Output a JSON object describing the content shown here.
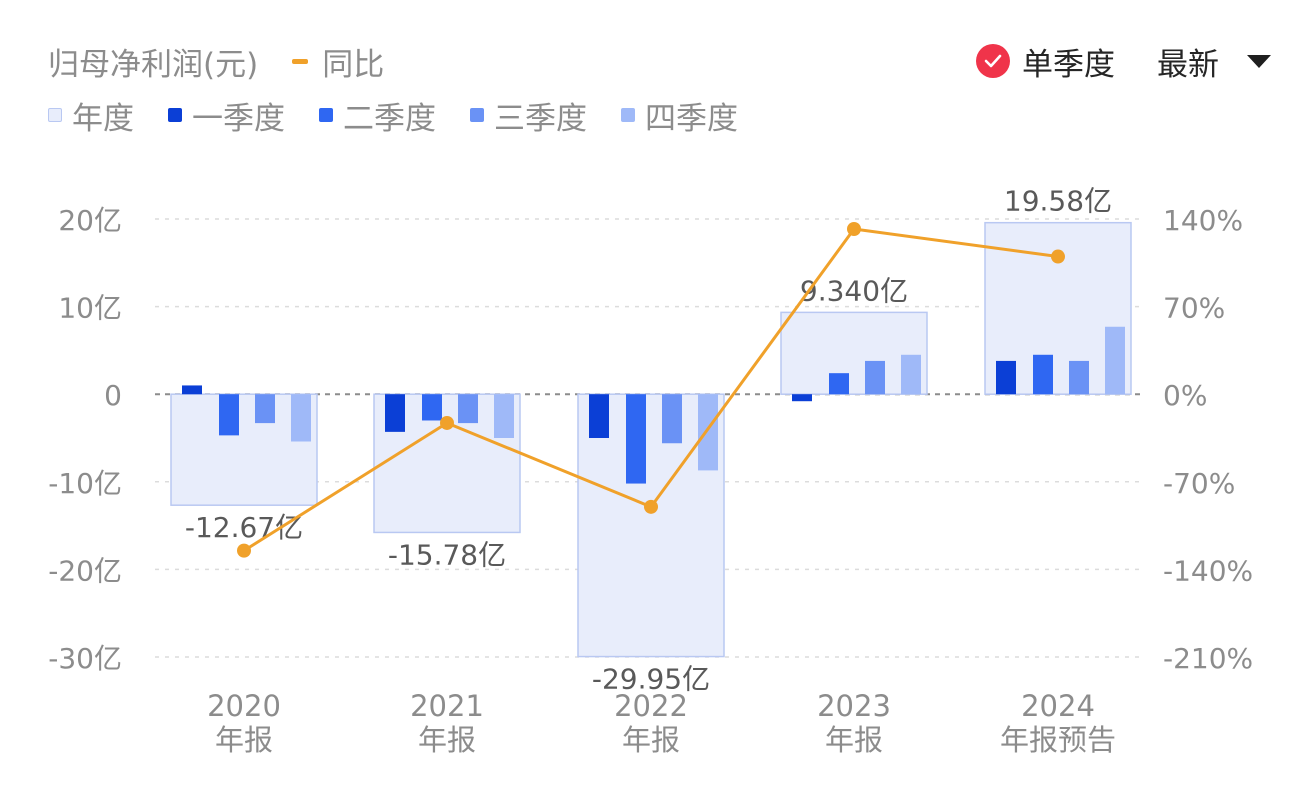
{
  "header": {
    "title": "归母净利润(元)",
    "yoy_label": "同比",
    "single_quarter_label": "单季度",
    "latest_label": "最新"
  },
  "legend": [
    {
      "label": "年度",
      "color": "#e8edfb",
      "border": "#b9c8f2"
    },
    {
      "label": "一季度",
      "color": "#0b3fd6"
    },
    {
      "label": "二季度",
      "color": "#2f67f2"
    },
    {
      "label": "三季度",
      "color": "#6a92f5"
    },
    {
      "label": "四季度",
      "color": "#9fb9f8"
    }
  ],
  "colors": {
    "yoy_line": "#f0a12a",
    "check_badge": "#f0344a",
    "axis_text": "#8c8c8c",
    "label_text": "#595959",
    "grid": "#dcdcdc",
    "zero_line": "#8c8c8c"
  },
  "chart_data": {
    "type": "bar",
    "categories": [
      {
        "year": "2020",
        "kind": "年报"
      },
      {
        "year": "2021",
        "kind": "年报"
      },
      {
        "year": "2022",
        "kind": "年报"
      },
      {
        "year": "2023",
        "kind": "年报"
      },
      {
        "year": "2024",
        "kind": "年报预告"
      }
    ],
    "annual": {
      "values": [
        -12.67,
        -15.78,
        -29.95,
        9.34,
        19.58
      ],
      "labels": [
        "-12.67亿",
        "-15.78亿",
        "-29.95亿",
        "9.340亿",
        "19.58亿"
      ]
    },
    "quarterly": [
      {
        "name": "一季度",
        "values": [
          1.0,
          -4.3,
          -5.0,
          -0.8,
          3.8
        ]
      },
      {
        "name": "二季度",
        "values": [
          -4.7,
          -3.0,
          -10.2,
          2.4,
          4.5
        ]
      },
      {
        "name": "三季度",
        "values": [
          -3.3,
          -3.3,
          -5.6,
          3.8,
          3.8
        ]
      },
      {
        "name": "四季度",
        "values": [
          -5.4,
          -5.0,
          -8.7,
          4.5,
          7.7
        ]
      }
    ],
    "yoy": {
      "name": "同比",
      "values": [
        -125,
        -23,
        -90,
        132,
        110
      ]
    },
    "y_left": {
      "ticks": [
        20,
        10,
        0,
        -10,
        -20,
        -30
      ],
      "tick_labels": [
        "20亿",
        "10亿",
        "0",
        "-10亿",
        "-20亿",
        "-30亿"
      ],
      "range": [
        -30,
        20
      ]
    },
    "y_right": {
      "ticks": [
        140,
        70,
        0,
        -70,
        -140,
        -210
      ],
      "tick_labels": [
        "140%",
        "70%",
        "0%",
        "-70%",
        "-140%",
        "-210%"
      ],
      "range": [
        -210,
        140
      ]
    },
    "grid": true
  }
}
